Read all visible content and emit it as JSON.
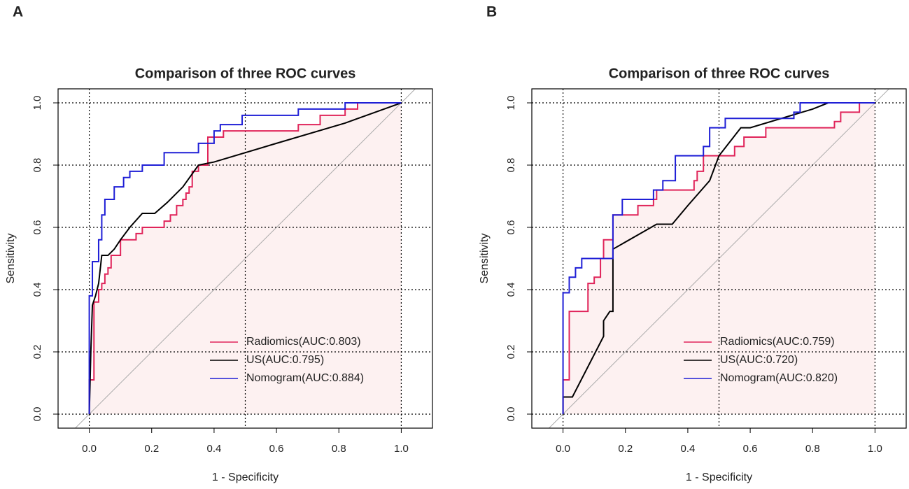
{
  "chart_data": [
    {
      "type": "line",
      "panel": "A",
      "title": "Comparison of three ROC curves",
      "xlabel": "1 - Specificity",
      "ylabel": "Sensitivity",
      "xlim": [
        -0.1,
        1.1
      ],
      "ylim": [
        -0.045,
        1.045
      ],
      "xticks": [
        {
          "value": 0,
          "label": "0.0"
        },
        0.2,
        0.4,
        0.6,
        0.8,
        {
          "value": 1,
          "label": "1.0"
        }
      ],
      "yticks": [
        {
          "value": 0,
          "label": "0.0"
        },
        0.2,
        0.4,
        0.6,
        0.8,
        {
          "value": 1,
          "label": "1.0"
        }
      ],
      "grid_x": [
        0,
        0.5,
        1
      ],
      "grid_y": [
        0,
        0.2,
        0.4,
        0.6,
        0.8,
        1
      ],
      "diagonal_color": "#aaaaaa",
      "fill_color": "#fdf1f1",
      "legend": "bottomright",
      "series": [
        {
          "name": "Radiomics(AUC:0.803)",
          "color": "#e0245a",
          "x": [
            0,
            0,
            0.015,
            0.015,
            0.03,
            0.03,
            0.04,
            0.04,
            0.05,
            0.05,
            0.06,
            0.06,
            0.07,
            0.07,
            0.1,
            0.1,
            0.15,
            0.15,
            0.17,
            0.17,
            0.24,
            0.24,
            0.26,
            0.26,
            0.28,
            0.28,
            0.3,
            0.3,
            0.31,
            0.31,
            0.32,
            0.32,
            0.33,
            0.33,
            0.35,
            0.35,
            0.38,
            0.38,
            0.43,
            0.43,
            0.67,
            0.67,
            0.74,
            0.74,
            0.82,
            0.82,
            0.86,
            0.86,
            1
          ],
          "values": [
            0,
            0.11,
            0.11,
            0.36,
            0.36,
            0.4,
            0.4,
            0.42,
            0.42,
            0.45,
            0.45,
            0.47,
            0.47,
            0.51,
            0.51,
            0.56,
            0.56,
            0.58,
            0.58,
            0.6,
            0.6,
            0.62,
            0.62,
            0.64,
            0.64,
            0.67,
            0.67,
            0.69,
            0.69,
            0.71,
            0.71,
            0.73,
            0.73,
            0.78,
            0.78,
            0.8,
            0.8,
            0.89,
            0.89,
            0.91,
            0.91,
            0.93,
            0.93,
            0.96,
            0.96,
            0.98,
            0.98,
            1,
            1
          ]
        },
        {
          "name": "US(AUC:0.795)",
          "color": "#000000",
          "x": [
            0,
            0.005,
            0.01,
            0.02,
            0.03,
            0.04,
            0.06,
            0.08,
            0.1,
            0.13,
            0.17,
            0.21,
            0.25,
            0.3,
            0.35,
            0.4,
            0.6,
            0.82,
            1
          ],
          "values": [
            0,
            0.2,
            0.35,
            0.38,
            0.42,
            0.51,
            0.51,
            0.53,
            0.56,
            0.6,
            0.645,
            0.645,
            0.68,
            0.73,
            0.8,
            0.81,
            0.87,
            0.935,
            1
          ]
        },
        {
          "name": "Nomogram(AUC:0.884)",
          "color": "#1f1fd6",
          "x": [
            0,
            0,
            0.01,
            0.01,
            0.03,
            0.03,
            0.04,
            0.04,
            0.05,
            0.05,
            0.08,
            0.08,
            0.11,
            0.11,
            0.13,
            0.13,
            0.17,
            0.17,
            0.24,
            0.24,
            0.35,
            0.35,
            0.4,
            0.4,
            0.42,
            0.42,
            0.49,
            0.49,
            0.67,
            0.67,
            0.82,
            0.82,
            1
          ],
          "values": [
            0,
            0.38,
            0.38,
            0.49,
            0.49,
            0.56,
            0.56,
            0.64,
            0.64,
            0.69,
            0.69,
            0.73,
            0.73,
            0.76,
            0.76,
            0.78,
            0.78,
            0.8,
            0.8,
            0.84,
            0.84,
            0.87,
            0.87,
            0.91,
            0.91,
            0.93,
            0.93,
            0.96,
            0.96,
            0.98,
            0.98,
            1,
            1
          ]
        }
      ]
    },
    {
      "type": "line",
      "panel": "B",
      "title": "Comparison of three ROC curves",
      "xlabel": "1 - Specificity",
      "ylabel": "Sensitivity",
      "xlim": [
        -0.1,
        1.1
      ],
      "ylim": [
        -0.045,
        1.045
      ],
      "xticks": [
        {
          "value": 0,
          "label": "0.0"
        },
        0.2,
        0.4,
        0.6,
        0.8,
        {
          "value": 1,
          "label": "1.0"
        }
      ],
      "yticks": [
        {
          "value": 0,
          "label": "0.0"
        },
        0.2,
        0.4,
        0.6,
        0.8,
        {
          "value": 1,
          "label": "1.0"
        }
      ],
      "grid_x": [
        0,
        0.5,
        1
      ],
      "grid_y": [
        0,
        0.2,
        0.4,
        0.6,
        0.8,
        1
      ],
      "diagonal_color": "#aaaaaa",
      "fill_color": "#fdf1f1",
      "legend": "bottomright",
      "series": [
        {
          "name": "Radiomics(AUC:0.759)",
          "color": "#e0245a",
          "x": [
            0,
            0,
            0.02,
            0.02,
            0.08,
            0.08,
            0.1,
            0.1,
            0.12,
            0.12,
            0.13,
            0.13,
            0.16,
            0.16,
            0.24,
            0.24,
            0.29,
            0.29,
            0.3,
            0.3,
            0.42,
            0.42,
            0.43,
            0.43,
            0.45,
            0.45,
            0.55,
            0.55,
            0.58,
            0.58,
            0.65,
            0.65,
            0.87,
            0.87,
            0.89,
            0.89,
            0.95,
            0.95,
            1
          ],
          "values": [
            0,
            0.11,
            0.11,
            0.33,
            0.33,
            0.42,
            0.42,
            0.44,
            0.44,
            0.5,
            0.5,
            0.56,
            0.56,
            0.64,
            0.64,
            0.67,
            0.67,
            0.69,
            0.69,
            0.72,
            0.72,
            0.75,
            0.75,
            0.78,
            0.78,
            0.83,
            0.83,
            0.86,
            0.86,
            0.89,
            0.89,
            0.92,
            0.92,
            0.94,
            0.94,
            0.97,
            0.97,
            1,
            1
          ]
        },
        {
          "name": "US(AUC:0.720)",
          "color": "#000000",
          "x": [
            0,
            0,
            0.03,
            0.13,
            0.13,
            0.15,
            0.16,
            0.16,
            0.3,
            0.35,
            0.4,
            0.47,
            0.5,
            0.57,
            0.6,
            0.8,
            0.85,
            1
          ],
          "values": [
            0,
            0.055,
            0.055,
            0.25,
            0.3,
            0.33,
            0.33,
            0.53,
            0.61,
            0.61,
            0.67,
            0.75,
            0.83,
            0.92,
            0.92,
            0.98,
            1,
            1
          ]
        },
        {
          "name": "Nomogram(AUC:0.820)",
          "color": "#1f1fd6",
          "x": [
            0,
            0,
            0.02,
            0.02,
            0.04,
            0.04,
            0.06,
            0.06,
            0.16,
            0.16,
            0.19,
            0.19,
            0.29,
            0.29,
            0.32,
            0.32,
            0.36,
            0.36,
            0.45,
            0.45,
            0.47,
            0.47,
            0.52,
            0.52,
            0.74,
            0.74,
            0.76,
            0.76,
            1
          ],
          "values": [
            0,
            0.39,
            0.39,
            0.44,
            0.44,
            0.47,
            0.47,
            0.5,
            0.5,
            0.64,
            0.64,
            0.69,
            0.69,
            0.72,
            0.72,
            0.75,
            0.75,
            0.83,
            0.83,
            0.86,
            0.86,
            0.92,
            0.92,
            0.95,
            0.95,
            0.97,
            0.97,
            1,
            1
          ]
        }
      ]
    }
  ]
}
